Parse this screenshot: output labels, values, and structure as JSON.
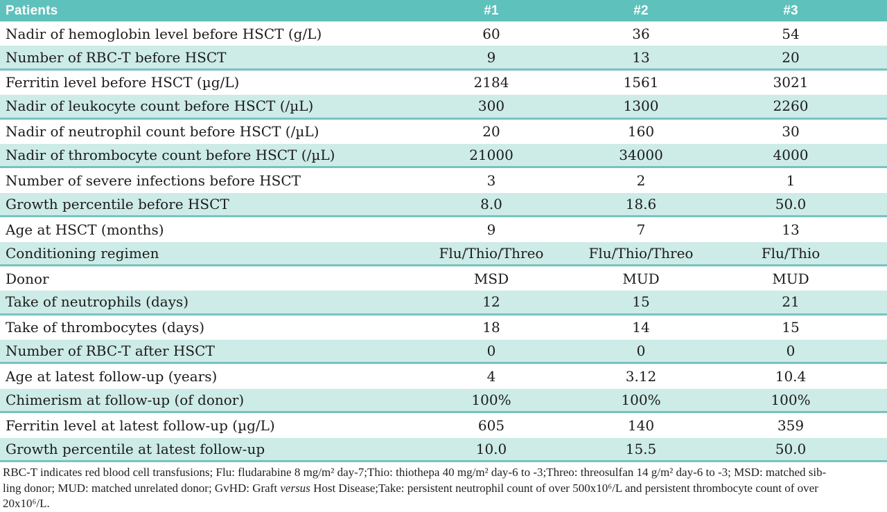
{
  "colors": {
    "header_bg": "#5ec1bc",
    "header_text": "#ffffff",
    "row_alt_bg": "#cdebe7",
    "row_divider": "#76c3c0",
    "body_text": "#1b1b1b"
  },
  "table": {
    "header": {
      "label": "Patients",
      "cols": [
        "#1",
        "#2",
        "#3"
      ]
    },
    "rows": [
      {
        "label": "Nadir of hemoglobin level before HSCT (g/L)",
        "values": [
          "60",
          "36",
          "54"
        ]
      },
      {
        "label": "Number of RBC-T before HSCT",
        "values": [
          "9",
          "13",
          "20"
        ]
      },
      {
        "label": "Ferritin level before HSCT (µg/L)",
        "values": [
          "2184",
          "1561",
          "3021"
        ]
      },
      {
        "label": "Nadir of leukocyte count before HSCT (/µL)",
        "values": [
          "300",
          "1300",
          "2260"
        ]
      },
      {
        "label": "Nadir of neutrophil count before HSCT (/µL)",
        "values": [
          "20",
          "160",
          "30"
        ]
      },
      {
        "label": "Nadir of thrombocyte count before HSCT (/µL)",
        "values": [
          "21000",
          "34000",
          "4000"
        ]
      },
      {
        "label": "Number of severe infections before HSCT",
        "values": [
          "3",
          "2",
          "1"
        ]
      },
      {
        "label": "Growth percentile before HSCT",
        "values": [
          "8.0",
          "18.6",
          "50.0"
        ]
      },
      {
        "label": "Age at HSCT (months)",
        "values": [
          "9",
          "7",
          "13"
        ]
      },
      {
        "label": "Conditioning regimen",
        "values": [
          "Flu/Thio/Threo",
          "Flu/Thio/Threo",
          "Flu/Thio"
        ]
      },
      {
        "label": "Donor",
        "values": [
          "MSD",
          "MUD",
          "MUD"
        ]
      },
      {
        "label": "Take of neutrophils (days)",
        "values": [
          "12",
          "15",
          "21"
        ]
      },
      {
        "label": "Take of thrombocytes (days)",
        "values": [
          "18",
          "14",
          "15"
        ]
      },
      {
        "label": "Number of RBC-T after HSCT",
        "values": [
          "0",
          "0",
          "0"
        ]
      },
      {
        "label": "Age at latest follow-up (years)",
        "values": [
          "4",
          "3.12",
          "10.4"
        ]
      },
      {
        "label": "Chimerism at follow-up (of donor)",
        "values": [
          "100%",
          "100%",
          "100%"
        ]
      },
      {
        "label": "Ferritin level at latest follow-up (µg/L)",
        "values": [
          "605",
          "140",
          "359"
        ]
      },
      {
        "label": "Growth percentile at latest follow-up",
        "values": [
          "10.0",
          "15.5",
          "50.0"
        ]
      }
    ]
  },
  "footnote": {
    "line1": "RBC-T indicates red blood cell transfusions; Flu: fludarabine 8 mg/m² day-7;Thio: thiothepa 40 mg/m² day-6 to -3;Threo: threosulfan 14 g/m² day-6 to -3; MSD: matched sib-",
    "line2_before_italic": "ling donor; MUD: matched unrelated donor; GvHD: Graft ",
    "line2_italic": "versus",
    "line2_after_italic": " Host Disease;Take: persistent neutrophil count of over 500x10⁶/L and persistent thrombocyte count of over",
    "line3": "20x10⁶/L."
  }
}
